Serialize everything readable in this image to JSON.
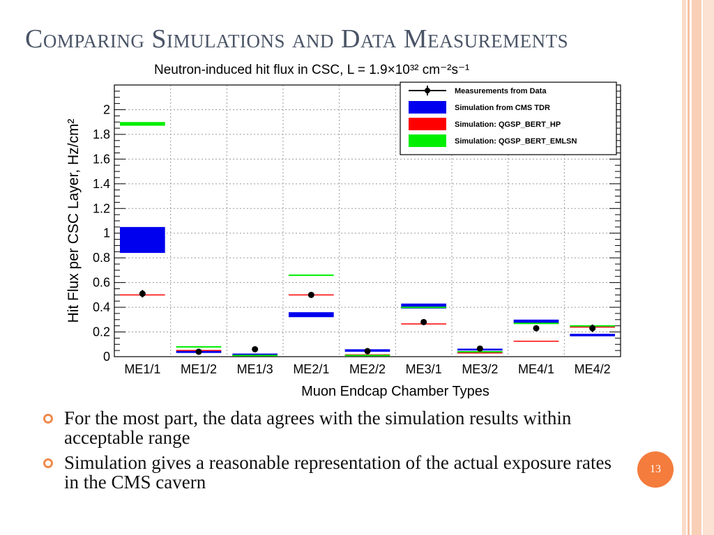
{
  "slide": {
    "title": "Comparing Simulations and Data Measurements",
    "page_number": "13",
    "accent_color": "#f47c3c",
    "bullets": [
      "For the most part, the data agrees with the simulation results within acceptable range",
      "Simulation gives a reasonable representation of the actual exposure rates in the CMS cavern"
    ]
  },
  "chart_data": {
    "type": "bar",
    "title": "Neutron-induced hit flux in CSC, L = 1.9×10³² cm⁻²s⁻¹",
    "xlabel": "Muon Endcap Chamber Types",
    "ylabel": "Hit Flux per CSC Layer, Hz/cm²",
    "ylim": [
      0,
      2.2
    ],
    "yticks": [
      "0",
      "0.2",
      "0.4",
      "0.6",
      "0.8",
      "1",
      "1.2",
      "1.4",
      "1.6",
      "1.8",
      "2"
    ],
    "grid": true,
    "legend_position": "top-right",
    "categories": [
      "ME1/1",
      "ME1/2",
      "ME1/3",
      "ME2/1",
      "ME2/2",
      "ME3/1",
      "ME3/2",
      "ME4/1",
      "ME4/2"
    ],
    "series": [
      {
        "name": "Measurements from Data",
        "color": "#000000",
        "kind": "point",
        "values": [
          0.51,
          0.04,
          0.06,
          0.5,
          0.045,
          0.28,
          0.065,
          0.23,
          0.23
        ],
        "errors": [
          0.03,
          0.015,
          0.015,
          0.02,
          0.01,
          0.015,
          0.015,
          0.02,
          0.03
        ]
      },
      {
        "name": "Simulation from CMS TDR",
        "color": "#0000ee",
        "kind": "band",
        "lows": [
          0.84,
          0.03,
          0.015,
          0.32,
          0.04,
          0.39,
          0.05,
          0.27,
          0.165
        ],
        "highs": [
          1.05,
          0.05,
          0.025,
          0.36,
          0.06,
          0.43,
          0.065,
          0.3,
          0.185
        ]
      },
      {
        "name": "Simulation: QGSP_BERT_HP",
        "color": "#ff0000",
        "kind": "line",
        "values": [
          0.5,
          0.05,
          0.01,
          0.5,
          0.015,
          0.265,
          0.03,
          0.125,
          0.24
        ]
      },
      {
        "name": "Simulation: QGSP_BERT_EMLSN",
        "color": "#00ee00",
        "kind": "band",
        "lows": [
          1.87,
          0.075,
          0.005,
          0.655,
          0.005,
          0.395,
          0.035,
          0.265,
          0.245
        ],
        "highs": [
          1.9,
          0.085,
          0.015,
          0.665,
          0.015,
          0.405,
          0.045,
          0.275,
          0.255
        ]
      }
    ]
  }
}
